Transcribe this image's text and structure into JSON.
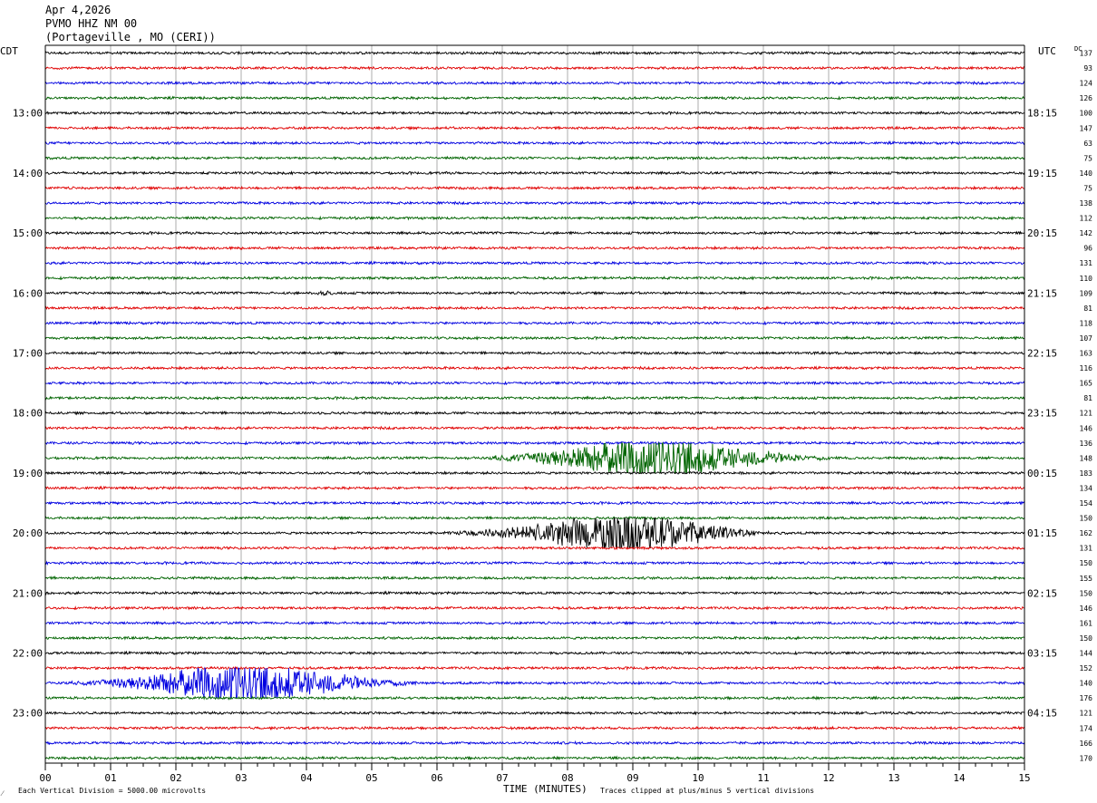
{
  "header": {
    "date": "Apr 4,2026",
    "station": "PVMO HHZ NM 00",
    "location": "(Portageville , MO (CERI))"
  },
  "axes": {
    "left_tz": "CDT",
    "right_tz": "UTC",
    "dc_label": "DC",
    "xlabel": "TIME (MINUTES)",
    "scale_note": "Each Vertical Division = 5000.00 microvolts",
    "clip_note": "Traces clipped at plus/minus 5 vertical divisions",
    "corner_mark": "⁄"
  },
  "chart_data": {
    "type": "line",
    "x_ticks": [
      "00",
      "01",
      "02",
      "03",
      "04",
      "05",
      "06",
      "07",
      "08",
      "09",
      "10",
      "11",
      "12",
      "13",
      "14",
      "15"
    ],
    "xlim": [
      0,
      15
    ],
    "left_hour_labels": [
      {
        "row": 4,
        "label": "13:00"
      },
      {
        "row": 8,
        "label": "14:00"
      },
      {
        "row": 12,
        "label": "15:00"
      },
      {
        "row": 16,
        "label": "16:00"
      },
      {
        "row": 20,
        "label": "17:00"
      },
      {
        "row": 24,
        "label": "18:00"
      },
      {
        "row": 28,
        "label": "19:00"
      },
      {
        "row": 32,
        "label": "20:00"
      },
      {
        "row": 36,
        "label": "21:00"
      },
      {
        "row": 40,
        "label": "22:00"
      },
      {
        "row": 44,
        "label": "23:00"
      }
    ],
    "right_hour_labels": [
      {
        "row": 4,
        "label": "18:15"
      },
      {
        "row": 8,
        "label": "19:15"
      },
      {
        "row": 12,
        "label": "20:15"
      },
      {
        "row": 16,
        "label": "21:15"
      },
      {
        "row": 20,
        "label": "22:15"
      },
      {
        "row": 24,
        "label": "23:15"
      },
      {
        "row": 28,
        "label": "00:15"
      },
      {
        "row": 32,
        "label": "01:15"
      },
      {
        "row": 36,
        "label": "02:15"
      },
      {
        "row": 40,
        "label": "03:15"
      },
      {
        "row": 44,
        "label": "04:15"
      }
    ],
    "dc_offsets": [
      "137",
      "93",
      "124",
      "126",
      "100",
      "147",
      "63",
      "75",
      "140",
      "75",
      "138",
      "112",
      "142",
      "96",
      "131",
      "110",
      "109",
      "81",
      "118",
      "107",
      "163",
      "116",
      "165",
      "81",
      "121",
      "146",
      "136",
      "148",
      "183",
      "134",
      "154",
      "150",
      "162",
      "131",
      "150",
      "155",
      "150",
      "146",
      "161",
      "150",
      "144",
      "152",
      "140",
      "176",
      "121",
      "174",
      "166",
      "170"
    ],
    "trace_colors": [
      "#000000",
      "#e00000",
      "#0000e0",
      "#006400"
    ],
    "grid": true,
    "events": [
      {
        "row": 27,
        "start_min": 6.3,
        "peak_min": 9.2,
        "end_min": 12.3,
        "max_divisions": 5,
        "clipped": true
      },
      {
        "row": 32,
        "start_min": 5.9,
        "peak_min": 8.9,
        "end_min": 11.3,
        "max_divisions": 5,
        "clipped": true
      },
      {
        "row": 42,
        "start_min": 0.0,
        "peak_min": 3.0,
        "end_min": 6.0,
        "max_divisions": 5,
        "clipped": true
      },
      {
        "row": 16,
        "start_min": 4.0,
        "peak_min": 4.3,
        "end_min": 4.5,
        "max_divisions": 0.6,
        "clipped": false
      }
    ]
  }
}
